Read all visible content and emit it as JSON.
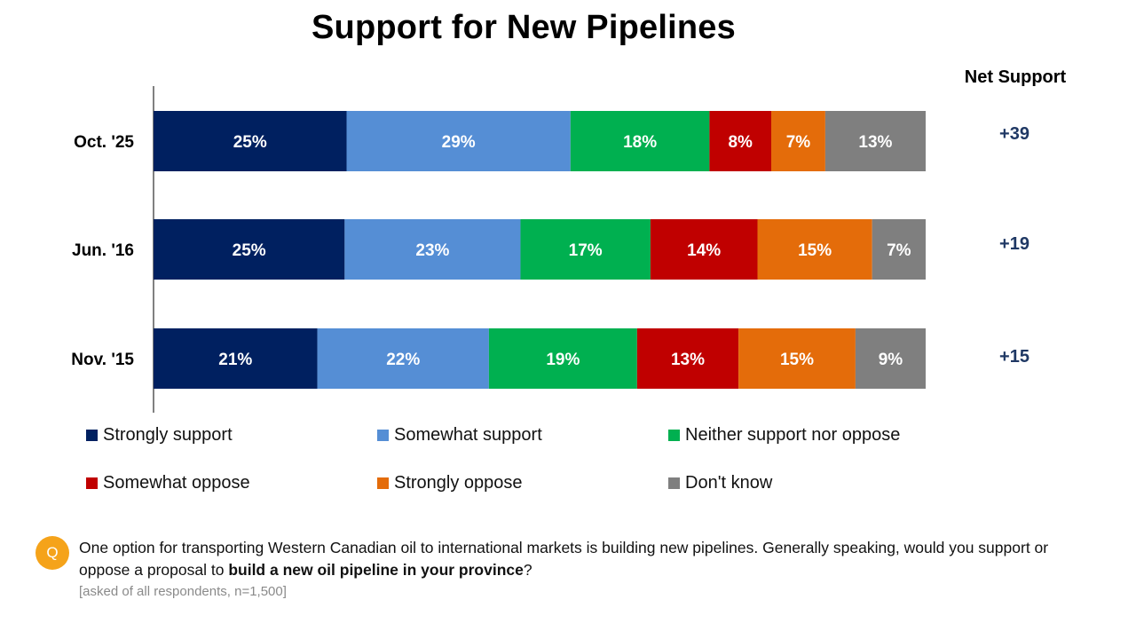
{
  "chart_data": {
    "type": "bar",
    "orientation": "horizontal",
    "stacked": true,
    "title": "Support for New Pipelines",
    "categories": [
      "Oct. '25",
      "Jun. '16",
      "Nov. '15"
    ],
    "series": [
      {
        "name": "Strongly support",
        "color": "#002060",
        "values": [
          25,
          25,
          21
        ],
        "labels": [
          "25%",
          "25%",
          "21%"
        ]
      },
      {
        "name": "Somewhat support",
        "color": "#558ed5",
        "values": [
          29,
          23,
          22
        ],
        "labels": [
          "29%",
          "23%",
          "22%"
        ]
      },
      {
        "name": "Neither support nor oppose",
        "color": "#00b050",
        "values": [
          18,
          17,
          19
        ],
        "labels": [
          "18%",
          "17%",
          "19%"
        ]
      },
      {
        "name": "Somewhat oppose",
        "color": "#c00000",
        "values": [
          8,
          14,
          13
        ],
        "labels": [
          "8%",
          "14%",
          "13%"
        ]
      },
      {
        "name": "Strongly oppose",
        "color": "#e46c0a",
        "values": [
          7,
          15,
          15
        ],
        "labels": [
          "7%",
          "15%",
          "15%"
        ]
      },
      {
        "name": "Don't know",
        "color": "#7f7f7f",
        "values": [
          13,
          7,
          9
        ],
        "labels": [
          "13%",
          "7%",
          "9%"
        ]
      }
    ],
    "net_support": {
      "header": "Net Support",
      "values": [
        "+39",
        "+19",
        "+15"
      ],
      "color": "#1f3864"
    },
    "legend_position": "bottom",
    "grid": false
  },
  "note": {
    "icon_label": "Q",
    "question_pre": "One option for transporting Western Canadian oil to international markets is building new pipelines. Generally speaking, would you support or oppose a proposal to ",
    "question_bold": "build a new oil pipeline in your province",
    "question_post": "?",
    "base": "[asked of all respondents, n=1,500]"
  }
}
